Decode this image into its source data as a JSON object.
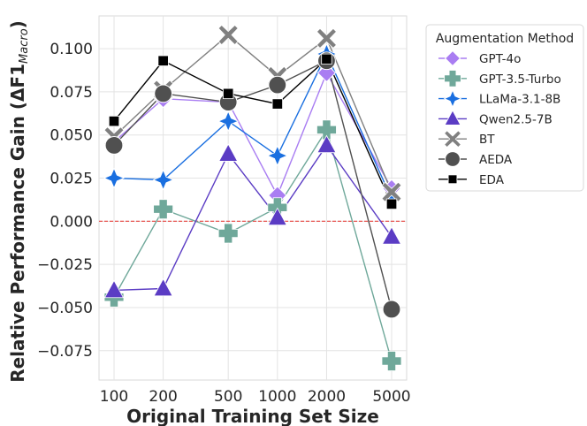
{
  "chart_data": {
    "type": "line",
    "x": [
      100,
      200,
      500,
      1000,
      2000,
      5000
    ],
    "x_scale": "log",
    "x_tick_labels": [
      "100",
      "200",
      "500",
      "1000",
      "2000",
      "5000"
    ],
    "xlabel": "Original Training Set Size",
    "ylabel_main": "Relative Performance Gain (ΔF1",
    "ylabel_sub": "Macro",
    "ylabel_close": ")",
    "ylim": [
      -0.092,
      0.119
    ],
    "y_ticks": [
      -0.075,
      -0.05,
      -0.025,
      0.0,
      0.025,
      0.05,
      0.075,
      0.1
    ],
    "y_tick_labels": [
      "−0.075",
      "−0.050",
      "−0.025",
      "0.000",
      "0.025",
      "0.050",
      "0.075",
      "0.100"
    ],
    "grid": true,
    "reference_line": {
      "y": 0.0,
      "color": "#e8433f",
      "style": "dashed"
    },
    "legend": {
      "title": "Augmentation Method",
      "placement": "outside-right"
    },
    "series": [
      {
        "name": "GPT-4o",
        "marker": "diamond",
        "color": "#a97df2",
        "values": [
          0.046,
          0.071,
          0.069,
          0.015,
          0.086,
          0.019
        ]
      },
      {
        "name": "GPT-3.5-Turbo",
        "marker": "plus",
        "color": "#6fa89a",
        "values": [
          -0.044,
          0.007,
          -0.007,
          0.008,
          0.053,
          -0.081
        ]
      },
      {
        "name": "LLaMa-3.1-8B",
        "marker": "star4",
        "color": "#1a6fe0",
        "values": [
          0.025,
          0.024,
          0.058,
          0.038,
          0.097,
          0.013
        ]
      },
      {
        "name": "Qwen2.5-7B",
        "marker": "triangle",
        "color": "#5b3cc4",
        "values": [
          -0.04,
          -0.039,
          0.039,
          0.002,
          0.044,
          -0.009
        ]
      },
      {
        "name": "BT",
        "marker": "x",
        "color": "#808080",
        "values": [
          0.049,
          0.076,
          0.108,
          0.084,
          0.106,
          0.017
        ]
      },
      {
        "name": "AEDA",
        "marker": "circle",
        "color": "#505050",
        "values": [
          0.044,
          0.074,
          0.069,
          0.079,
          0.093,
          -0.051
        ]
      },
      {
        "name": "EDA",
        "marker": "square",
        "color": "#000000",
        "values": [
          0.058,
          0.093,
          0.074,
          0.068,
          0.094,
          0.01
        ]
      }
    ]
  }
}
